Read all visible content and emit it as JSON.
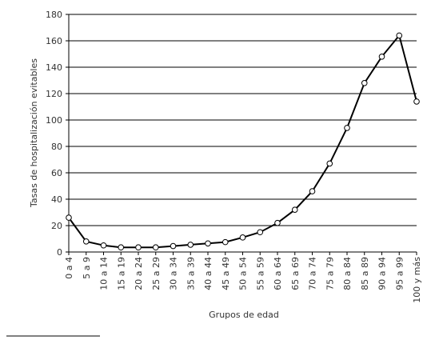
{
  "chart_data": {
    "type": "line",
    "xlabel": "Grupos de edad",
    "ylabel": "Tasas de hospitalización evitables",
    "categories": [
      "0 a 4",
      "5 a 9",
      "10 a 14",
      "15 a 19",
      "20 a 24",
      "25 a 29",
      "30 a 34",
      "35 a 39",
      "40 a 44",
      "45 a 49",
      "50 a 54",
      "55 a 59",
      "60 a 64",
      "65 a 69",
      "70 a 74",
      "75 a 79",
      "80 a 84",
      "85 a 89",
      "90 a 94",
      "95 a 99",
      "100 y más"
    ],
    "series": [
      {
        "color": "#000000",
        "values": [
          26,
          8,
          5,
          3.5,
          3.5,
          3.5,
          4.5,
          5.5,
          6.5,
          7.5,
          11,
          15,
          22,
          32,
          46,
          67,
          94,
          128,
          148,
          164,
          114
        ]
      }
    ],
    "ylim": [
      0,
      180
    ],
    "yticks": [
      0,
      20,
      40,
      60,
      80,
      100,
      120,
      140,
      160,
      180
    ],
    "grid": true
  }
}
